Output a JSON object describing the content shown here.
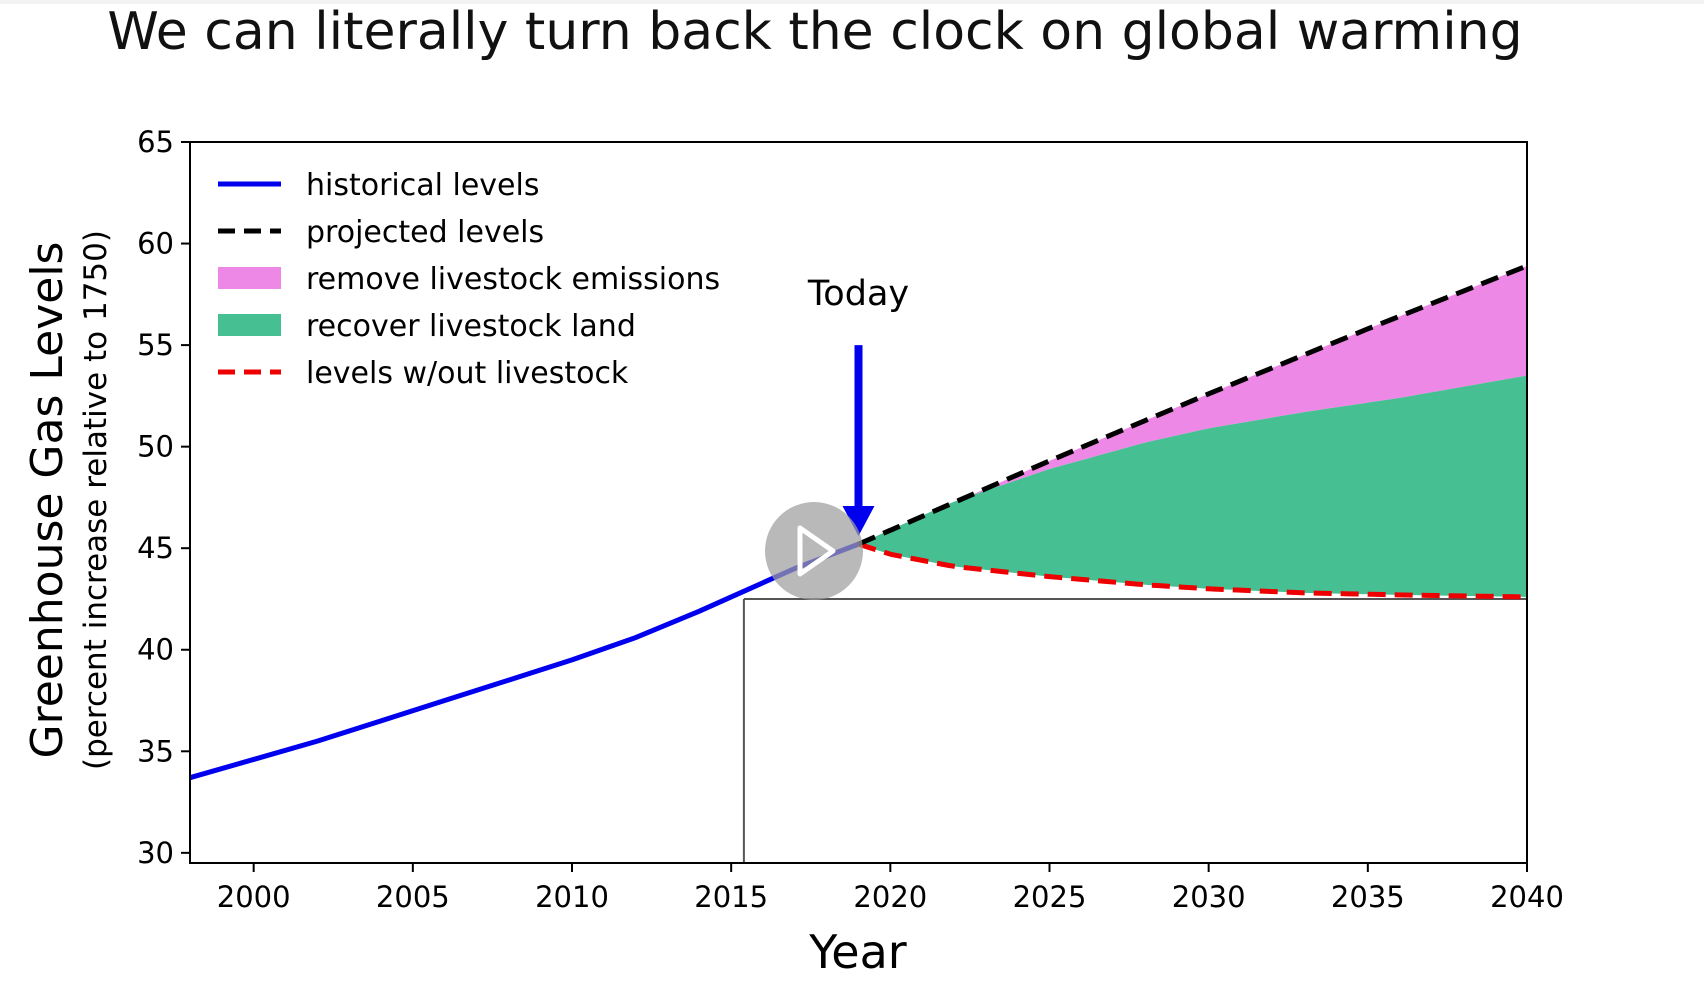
{
  "video_player": {
    "play_icon": "play-icon"
  },
  "chart_data": {
    "type": "line",
    "title": "We can literally turn back the clock on global warming",
    "xlabel": "Year",
    "ylabel": "Greenhouse Gas Levels",
    "ylabel_sub": "(percent increase relative to 1750)",
    "xlim": [
      1998,
      2040
    ],
    "ylim": [
      29.5,
      65
    ],
    "x_ticks": [
      2000,
      2005,
      2010,
      2015,
      2020,
      2025,
      2030,
      2035,
      2040
    ],
    "x_tick_labels": [
      "2000",
      "2005",
      "2010",
      "2015",
      "2020",
      "2025",
      "2030",
      "2035",
      "2040"
    ],
    "y_ticks": [
      30,
      35,
      40,
      45,
      50,
      55,
      60,
      65
    ],
    "y_tick_labels": [
      "30",
      "35",
      "40",
      "45",
      "50",
      "55",
      "60",
      "65"
    ],
    "legend_position": "top-left",
    "legend": [
      {
        "label": "historical levels",
        "style": "line",
        "color": "#0000ee"
      },
      {
        "label": "projected levels",
        "style": "dashed",
        "color": "#000000"
      },
      {
        "label": "remove livestock emissions",
        "style": "patch",
        "color": "#ee88e6"
      },
      {
        "label": "recover livestock land",
        "style": "patch",
        "color": "#46bf93"
      },
      {
        "label": "levels w/out livestock",
        "style": "dashed",
        "color": "#ee0000"
      }
    ],
    "annotation": {
      "text": "Today",
      "x": 2019,
      "arrow_from_y": 55,
      "arrow_to_y": 45.6,
      "color": "#0000ee"
    },
    "reference_point": {
      "x": 2015.4,
      "y": 42.5
    },
    "series": [
      {
        "name": "historical levels",
        "color": "#0000ee",
        "x": [
          1998,
          2000,
          2002,
          2004,
          2006,
          2008,
          2010,
          2012,
          2014,
          2015,
          2016,
          2017,
          2018,
          2019
        ],
        "y": [
          33.7,
          34.6,
          35.5,
          36.5,
          37.5,
          38.5,
          39.5,
          40.6,
          41.9,
          42.6,
          43.3,
          44.0,
          44.6,
          45.2
        ]
      },
      {
        "name": "projected levels",
        "color": "#000000",
        "x": [
          2019,
          2025,
          2030,
          2035,
          2040
        ],
        "y": [
          45.2,
          49.3,
          52.6,
          55.8,
          58.9
        ]
      },
      {
        "name": "levels w/out livestock",
        "color": "#ee0000",
        "x": [
          2019,
          2020,
          2022,
          2025,
          2028,
          2030,
          2033,
          2036,
          2040
        ],
        "y": [
          45.2,
          44.7,
          44.1,
          43.6,
          43.2,
          43.0,
          42.8,
          42.7,
          42.6
        ]
      },
      {
        "name": "recover livestock land upper edge",
        "color": "#46bf93",
        "x": [
          2019,
          2022,
          2025,
          2028,
          2030,
          2033,
          2036,
          2040
        ],
        "y": [
          45.2,
          47.3,
          48.9,
          50.2,
          50.9,
          51.7,
          52.4,
          53.5
        ]
      }
    ]
  }
}
